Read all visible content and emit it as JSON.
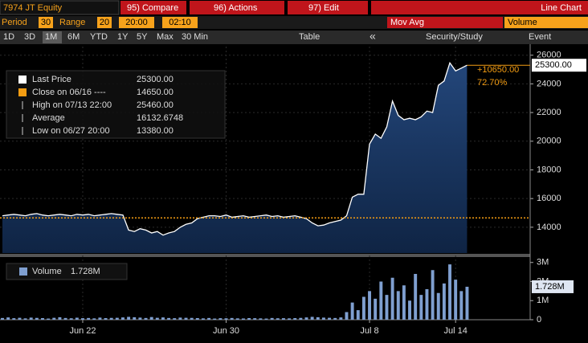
{
  "ui": {
    "security": "7974 JT Equity",
    "menus": [
      "95) Compare",
      "96) Actions",
      "97) Edit"
    ],
    "view": "Line Chart",
    "period_label": "Period",
    "period": "30",
    "range_label": "Range",
    "range": "20",
    "start": "20:00",
    "end": "02:10",
    "mov_avg": "Mov Avg",
    "volume": "Volume",
    "buttons": [
      "1D",
      "3D",
      "1M",
      "6M",
      "YTD",
      "1Y",
      "5Y",
      "Max",
      "30 Min"
    ],
    "table": "Table",
    "back": "«",
    "security_study": "Security/Study",
    "event": "Event"
  },
  "chart_data": {
    "type": "line",
    "xlim": [
      0,
      92
    ],
    "xticks": [
      {
        "value": 14,
        "label": "Jun 22"
      },
      {
        "value": 39,
        "label": "Jun 30"
      },
      {
        "value": 64,
        "label": "Jul 8"
      },
      {
        "value": 79,
        "label": "Jul 14"
      }
    ],
    "ylim": [
      12200,
      26600
    ],
    "yticks": [
      14000,
      16000,
      18000,
      20000,
      22000,
      24000,
      26000
    ],
    "series": [
      {
        "name": "Last Price",
        "color": "#ffffff",
        "values": [
          14800,
          14850,
          14900,
          14850,
          14800,
          14900,
          14950,
          14850,
          14800,
          14850,
          14900,
          14850,
          14800,
          14900,
          14850,
          14900,
          14800,
          14850,
          14900,
          14950,
          14900,
          14850,
          13800,
          13700,
          13900,
          13800,
          13600,
          13700,
          13450,
          13600,
          13700,
          14000,
          14200,
          14300,
          14600,
          14700,
          14800,
          14800,
          14750,
          14850,
          14700,
          14750,
          14800,
          14700,
          14750,
          14800,
          14850,
          14750,
          14800,
          14700,
          14750,
          14800,
          14700,
          14600,
          14300,
          14100,
          14150,
          14300,
          14400,
          14500,
          14800,
          16100,
          16300,
          16300,
          19800,
          20500,
          20200,
          21000,
          22800,
          21800,
          21500,
          21600,
          21500,
          21700,
          22100,
          22000,
          23900,
          24200,
          25460,
          24900,
          25100,
          25300
        ]
      }
    ],
    "stats": [
      {
        "label": "Close on 06/16 ----",
        "value": "14650.00"
      },
      {
        "label": "High on 07/13 22:00",
        "value": "25460.00"
      },
      {
        "label": "Average",
        "value": "16132.6748"
      },
      {
        "label": "Low on 06/27 20:00",
        "value": "13380.00"
      }
    ],
    "last_value_label": "25300.00",
    "close_line": 14650,
    "close_line_color": "#f39c12",
    "change": "+10650.00",
    "change_pct": "72.70%",
    "volume": {
      "name": "Volume",
      "color": "#7f9fd0",
      "last_value_label": "1.728M",
      "ylim": [
        0,
        3200000
      ],
      "yticks": [
        {
          "value": 0,
          "label": "0"
        },
        {
          "value": 1000000,
          "label": "1M"
        },
        {
          "value": 2000000,
          "label": "2M"
        },
        {
          "value": 3000000,
          "label": "3M"
        }
      ],
      "values": [
        90000,
        120000,
        80000,
        100000,
        70000,
        110000,
        95000,
        85000,
        60000,
        100000,
        130000,
        90000,
        75000,
        105000,
        80000,
        90000,
        70000,
        110000,
        85000,
        95000,
        100000,
        120000,
        150000,
        130000,
        110000,
        90000,
        140000,
        100000,
        120000,
        90000,
        80000,
        110000,
        100000,
        95000,
        85000,
        70000,
        90000,
        60000,
        80000,
        75000,
        90000,
        70000,
        65000,
        85000,
        80000,
        70000,
        60000,
        90000,
        75000,
        80000,
        70000,
        85000,
        95000,
        120000,
        150000,
        130000,
        110000,
        100000,
        90000,
        120000,
        400000,
        900000,
        500000,
        1200000,
        1500000,
        1100000,
        2000000,
        1300000,
        2200000,
        1500000,
        1800000,
        1000000,
        2400000,
        1300000,
        1600000,
        2600000,
        1400000,
        1900000,
        2900000,
        2100000,
        1500000,
        1728000
      ]
    }
  }
}
